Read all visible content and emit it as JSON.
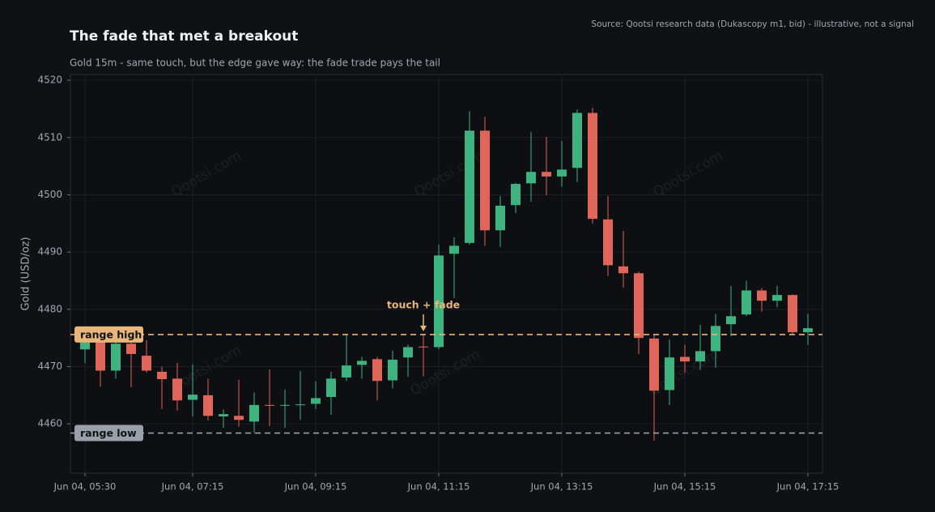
{
  "chart_data": {
    "type": "candlestick",
    "title": "The fade that met a breakout",
    "subtitle": "Gold 15m - same touch, but the edge gave way: the fade trade pays the tail",
    "source": "Source: Qootsi research data (Dukascopy m1, bid) - illustrative, not a signal",
    "watermark": "Qootsi.com",
    "ylabel": "Gold (USD/oz)",
    "categories": [
      "Jun 04, 05:30",
      null,
      null,
      null,
      null,
      null,
      null,
      "Jun 04, 07:15",
      null,
      null,
      null,
      null,
      null,
      null,
      null,
      "Jun 04, 09:15",
      null,
      null,
      null,
      null,
      null,
      null,
      null,
      "Jun 04, 11:15",
      null,
      null,
      null,
      null,
      null,
      null,
      null,
      "Jun 04, 13:15",
      null,
      null,
      null,
      null,
      null,
      null,
      null,
      "Jun 04, 15:15",
      null,
      null,
      null,
      null,
      null,
      null,
      null,
      "Jun 04, 17:15"
    ],
    "open": [
      4473.0,
      4474.4,
      4469.3,
      4474.0,
      4471.9,
      4469.1,
      4467.9,
      4464.2,
      4465.0,
      4461.3,
      4461.4,
      4460.4,
      4463.3,
      4463.2,
      4463.3,
      4463.5,
      4464.7,
      4468.1,
      4470.3,
      4471.3,
      4467.6,
      4471.6,
      4473.5,
      4473.4,
      4489.7,
      4491.6,
      4511.2,
      4493.8,
      4498.2,
      4502.0,
      4504.0,
      4503.2,
      4504.7,
      4514.3,
      4495.7,
      4487.5,
      4486.3,
      4474.9,
      4465.9,
      4471.7,
      4470.9,
      4472.7,
      4477.4,
      4479.1,
      4483.3,
      4481.5,
      4482.5,
      4476.0
    ],
    "high": [
      4474.6,
      4474.9,
      4477.0,
      4474.6,
      4474.6,
      4470.0,
      4470.7,
      4470.4,
      4467.9,
      4462.5,
      4467.7,
      4465.5,
      4469.5,
      4466.0,
      4469.2,
      4467.4,
      4469.1,
      4475.7,
      4471.7,
      4471.7,
      4472.8,
      4473.8,
      4475.7,
      4491.3,
      4492.6,
      4514.6,
      4513.6,
      4499.8,
      4502.1,
      4511.0,
      4510.1,
      4509.4,
      4514.9,
      4515.2,
      4499.8,
      4493.7,
      4486.6,
      4475.6,
      4474.7,
      4473.8,
      4477.3,
      4479.2,
      4484.1,
      4485.0,
      4483.7,
      4484.1,
      4482.6,
      4479.2
    ],
    "low": [
      4470.6,
      4466.5,
      4467.9,
      4466.4,
      4469.0,
      4462.6,
      4462.3,
      4461.3,
      4460.6,
      4459.3,
      4459.5,
      4458.4,
      4459.6,
      4459.3,
      4460.7,
      4462.6,
      4461.6,
      4467.5,
      4467.9,
      4464.1,
      4466.2,
      4468.2,
      4468.3,
      4473.0,
      4482.0,
      4491.3,
      4491.1,
      4490.9,
      4496.8,
      4498.8,
      4499.9,
      4501.4,
      4502.2,
      4495.0,
      4485.8,
      4483.8,
      4472.2,
      4457.1,
      4463.3,
      4468.9,
      4469.4,
      4469.8,
      4475.3,
      4478.8,
      4479.6,
      4480.4,
      4475.7,
      4473.8
    ],
    "close": [
      4474.2,
      4469.3,
      4474.0,
      4472.2,
      4469.3,
      4467.8,
      4464.1,
      4465.1,
      4461.4,
      4461.7,
      4460.7,
      4463.3,
      4463.2,
      4463.3,
      4463.4,
      4464.5,
      4467.9,
      4470.2,
      4471.0,
      4467.5,
      4471.2,
      4473.4,
      4473.4,
      4489.4,
      4491.1,
      4511.2,
      4493.8,
      4498.1,
      4501.9,
      4504.0,
      4503.2,
      4504.4,
      4514.3,
      4495.8,
      4487.7,
      4486.3,
      4475.0,
      4465.8,
      4471.6,
      4470.9,
      4472.7,
      4477.1,
      4478.8,
      4483.3,
      4481.5,
      4482.5,
      4476.0,
      4476.7
    ],
    "up_color": "#3fb37f",
    "down_color": "#e0665a",
    "ylim": [
      4451.4,
      4521
    ],
    "yticks": [
      4460,
      4470,
      4480,
      4490,
      4500,
      4510,
      4520
    ],
    "grid": true,
    "levels": [
      {
        "label": "range high",
        "value": 4475.6,
        "color": "#e8b57a"
      },
      {
        "label": "range low",
        "value": 4458.4,
        "color": "#9aa0aa"
      }
    ],
    "annotation": {
      "text": "touch + fade",
      "color": "#e8b57a"
    }
  }
}
